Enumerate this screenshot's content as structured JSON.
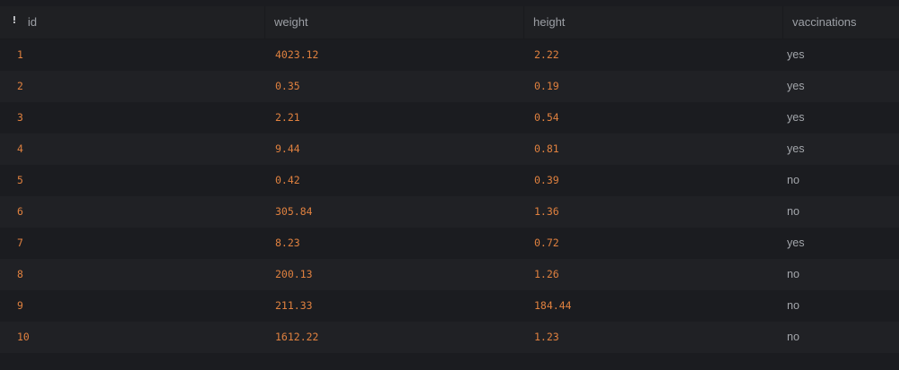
{
  "columns": {
    "id": "id",
    "weight": "weight",
    "height": "height",
    "vaccinations": "vaccinations"
  },
  "rows": [
    {
      "id": "1",
      "weight": "4023.12",
      "height": "2.22",
      "vaccinations": "yes"
    },
    {
      "id": "2",
      "weight": "0.35",
      "height": "0.19",
      "vaccinations": "yes"
    },
    {
      "id": "3",
      "weight": "2.21",
      "height": "0.54",
      "vaccinations": "yes"
    },
    {
      "id": "4",
      "weight": "9.44",
      "height": "0.81",
      "vaccinations": "yes"
    },
    {
      "id": "5",
      "weight": "0.42",
      "height": "0.39",
      "vaccinations": "no"
    },
    {
      "id": "6",
      "weight": "305.84",
      "height": "1.36",
      "vaccinations": "no"
    },
    {
      "id": "7",
      "weight": "8.23",
      "height": "0.72",
      "vaccinations": "yes"
    },
    {
      "id": "8",
      "weight": "200.13",
      "height": "1.26",
      "vaccinations": "no"
    },
    {
      "id": "9",
      "weight": "211.33",
      "height": "184.44",
      "vaccinations": "no"
    },
    {
      "id": "10",
      "weight": "1612.22",
      "height": "1.23",
      "vaccinations": "no"
    }
  ],
  "icons": {
    "sort": "sort-indicator-icon"
  },
  "colors": {
    "background": "#1b1c20",
    "header": "#1f2023",
    "number": "#e0813f",
    "text": "#a3a6ab"
  }
}
